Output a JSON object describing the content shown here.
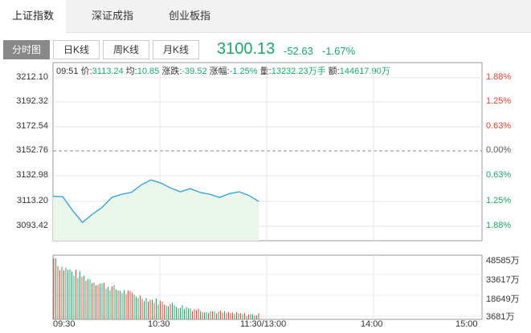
{
  "tabs": [
    "上证指数",
    "深证成指",
    "创业板指"
  ],
  "subtabs": [
    "分时图",
    "日K线",
    "周K线",
    "月K线"
  ],
  "quote": {
    "price": "3100.13",
    "change": "-52.63",
    "change_pct": "-1.67%"
  },
  "info": {
    "time": "09:51",
    "price_label": "价:",
    "price": "3113.24",
    "avg_label": "均:",
    "avg": "10.85",
    "change_label": "涨跌:",
    "change": "-39.52",
    "amp_label": "涨幅:",
    "amp": "-1.25%",
    "vol_label": "量:",
    "vol": "13232.23万手",
    "amt_label": "额:",
    "amt": "144617.90万"
  },
  "y_labels": [
    "3212.10",
    "3192.32",
    "3172.54",
    "3152.76",
    "3132.98",
    "3113.20",
    "3093.42"
  ],
  "right_labels": [
    "1.88%",
    "1.25%",
    "0.63%",
    "0.00%",
    "0.63%",
    "1.25%",
    "1.88%"
  ],
  "vol_labels": [
    "48585万",
    "33617万",
    "18649万",
    "3681万"
  ],
  "x_labels": [
    "09:30",
    "10:30",
    "11:30/13:00",
    "14:00",
    "15:00"
  ],
  "colors": {
    "up": "#e8412f",
    "down": "#1aa86a",
    "line": "#2e9ed8",
    "fill": "#eaf6ea"
  },
  "chart_data": {
    "type": "line",
    "title": "",
    "ylim": [
      3093.42,
      3212.1
    ],
    "x": [
      "09:30",
      "09:31",
      "09:32",
      "09:33",
      "09:34",
      "09:35",
      "09:36",
      "09:37",
      "09:38",
      "09:39",
      "09:40",
      "09:41",
      "09:42",
      "09:43",
      "09:44",
      "09:45",
      "09:46",
      "09:47",
      "09:48",
      "09:49",
      "09:50",
      "09:51"
    ],
    "series": [
      {
        "values": [
          3117.5,
          3117.0,
          3106.0,
          3096.5,
          3103.0,
          3108.5,
          3116.5,
          3119.0,
          3120.5,
          3126.5,
          3130.5,
          3128.0,
          3124.0,
          3121.0,
          3123.5,
          3120.5,
          3119.0,
          3116.5,
          3119.5,
          3121.0,
          3118.0,
          3113.24
        ]
      }
    ]
  }
}
